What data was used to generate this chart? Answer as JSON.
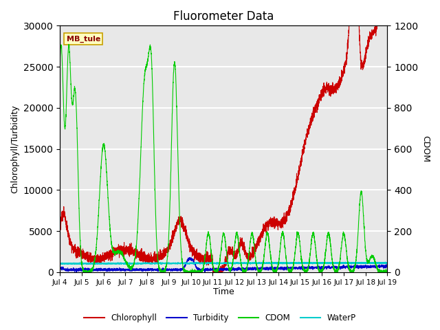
{
  "title": "Fluorometer Data",
  "ylabel_left": "Chlorophyll/Turbidity",
  "ylabel_right": "CDOM",
  "xlabel": "Time",
  "annotation": "MB_tule",
  "ylim_left": [
    0,
    30000
  ],
  "ylim_right": [
    0,
    1200
  ],
  "xlim": [
    0,
    15
  ],
  "xtick_labels": [
    "Jul 4",
    "Jul 5",
    "Jul 6",
    "Jul 7",
    "Jul 8",
    "Jul 9",
    "Jul 10",
    "Jul 11",
    "Jul 12",
    "Jul 13",
    "Jul 14",
    "Jul 15",
    "Jul 16",
    "Jul 17",
    "Jul 18",
    "Jul 19"
  ],
  "xtick_positions": [
    0,
    1,
    2,
    3,
    4,
    5,
    6,
    7,
    8,
    9,
    10,
    11,
    12,
    13,
    14,
    15
  ],
  "colors": {
    "chlorophyll": "#cc0000",
    "turbidity": "#0000cc",
    "cdom": "#00cc00",
    "waterp": "#00cccc"
  },
  "legend_labels": [
    "Chlorophyll",
    "Turbidity",
    "CDOM",
    "WaterP"
  ],
  "background_color": "#e8e8e8",
  "title_fontsize": 12,
  "axis_label_fontsize": 9,
  "ytick_left": [
    0,
    5000,
    10000,
    15000,
    20000,
    25000,
    30000
  ],
  "ytick_right": [
    0,
    200,
    400,
    600,
    800,
    1000,
    1200
  ]
}
